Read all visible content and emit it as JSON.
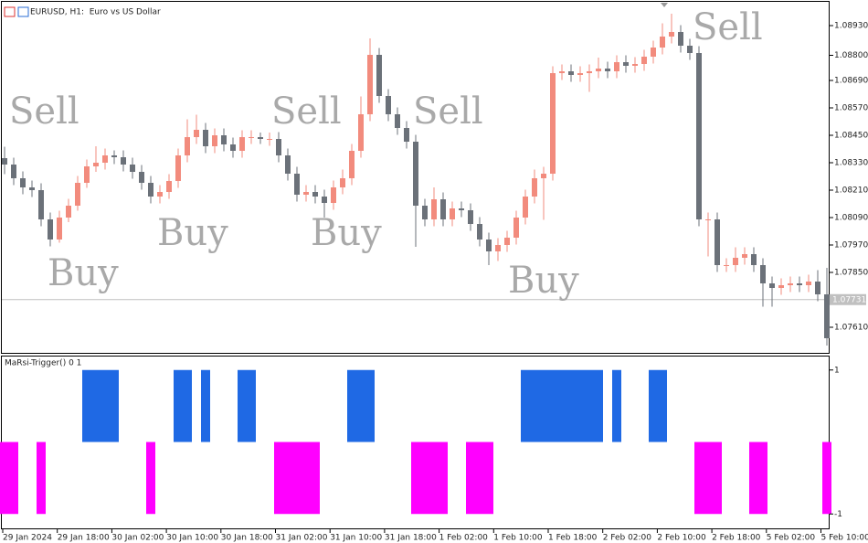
{
  "chart_data": {
    "type": "candlestick",
    "title": "EURUSD, H1:  Euro vs US Dollar",
    "up_color": "#f28b7d",
    "down_color": "#6b7179",
    "open": [
      1.0835,
      1.08322,
      1.08262,
      1.08222,
      1.0821,
      1.08082,
      1.07994,
      1.0809,
      1.08142,
      1.08242,
      1.08314,
      1.0833,
      1.08362,
      1.08354,
      1.08322,
      1.0829,
      1.08242,
      1.08182,
      1.08202,
      1.0825,
      1.08362,
      1.08442,
      1.08474,
      1.08402,
      1.0845,
      1.0841,
      1.08382,
      1.08442,
      1.08442,
      1.08434,
      1.08434,
      1.08362,
      1.08282,
      1.0819,
      1.08202,
      1.08182,
      1.08154,
      1.08222,
      1.08262,
      1.08382,
      1.08542,
      1.08802,
      1.08622,
      1.08542,
      1.08482,
      1.08422,
      1.08142,
      1.08082,
      1.0817,
      1.08082,
      1.0813,
      1.08122,
      1.08062,
      1.07994,
      1.07942,
      1.0797,
      1.08002,
      1.0809,
      1.08182,
      1.08262,
      1.08282,
      1.08722,
      1.0873,
      1.08714,
      1.08722,
      1.0873,
      1.08742,
      1.0873,
      1.0877,
      1.08754,
      1.08762,
      1.08794,
      1.08834,
      1.08882,
      1.08902,
      1.08842,
      1.0881,
      1.08082,
      1.08082,
      1.07882,
      1.07882,
      1.07914,
      1.0793,
      1.07882,
      1.07802,
      1.07782,
      1.07794,
      1.07802,
      1.07794,
      1.0781,
      1.07754
    ],
    "high": [
      1.084,
      1.08352,
      1.08292,
      1.08252,
      1.0824,
      1.08112,
      1.0812,
      1.08172,
      1.08272,
      1.08344,
      1.08402,
      1.08392,
      1.08384,
      1.08384,
      1.08352,
      1.0832,
      1.08272,
      1.08232,
      1.0828,
      1.08392,
      1.0852,
      1.0854,
      1.08504,
      1.0848,
      1.0848,
      1.0844,
      1.08472,
      1.08472,
      1.08462,
      1.08462,
      1.08464,
      1.08392,
      1.08312,
      1.08232,
      1.08232,
      1.08212,
      1.08252,
      1.083,
      1.08412,
      1.0862,
      1.08874,
      1.08832,
      1.08652,
      1.08572,
      1.08512,
      1.08452,
      1.08172,
      1.08222,
      1.082,
      1.0816,
      1.0816,
      1.08152,
      1.08092,
      1.08024,
      1.08,
      1.08032,
      1.0812,
      1.08212,
      1.083,
      1.08312,
      1.08752,
      1.0876,
      1.0876,
      1.08752,
      1.0876,
      1.0879,
      1.08772,
      1.088,
      1.088,
      1.08792,
      1.08824,
      1.08864,
      1.0894,
      1.08982,
      1.08932,
      1.08872,
      1.0884,
      1.08112,
      1.08112,
      1.07912,
      1.0796,
      1.0796,
      1.0796,
      1.07912,
      1.07832,
      1.07824,
      1.07832,
      1.07832,
      1.0784,
      1.0786,
      1.0787
    ],
    "low": [
      1.0828,
      1.08232,
      1.08192,
      1.0818,
      1.08052,
      1.07964,
      1.0798,
      1.0807,
      1.0812,
      1.0822,
      1.0829,
      1.083,
      1.08324,
      1.08292,
      1.0826,
      1.08212,
      1.08152,
      1.08152,
      1.08172,
      1.0822,
      1.08332,
      1.08412,
      1.08372,
      1.08372,
      1.0838,
      1.08352,
      1.08352,
      1.08412,
      1.08412,
      1.08404,
      1.08332,
      1.08252,
      1.0816,
      1.0816,
      1.08152,
      1.0809,
      1.08124,
      1.08192,
      1.08232,
      1.08352,
      1.08512,
      1.08592,
      1.08512,
      1.08452,
      1.08392,
      1.07962,
      1.08052,
      1.08052,
      1.08052,
      1.08052,
      1.08092,
      1.08032,
      1.07964,
      1.07882,
      1.079,
      1.0794,
      1.07972,
      1.0806,
      1.08152,
      1.0808,
      1.08252,
      1.08692,
      1.08684,
      1.08684,
      1.0864,
      1.087,
      1.087,
      1.087,
      1.08724,
      1.08724,
      1.08732,
      1.08764,
      1.08804,
      1.08852,
      1.08812,
      1.0878,
      1.08052,
      1.0792,
      1.07852,
      1.07852,
      1.07852,
      1.07884,
      1.07852,
      1.077,
      1.077,
      1.07752,
      1.07764,
      1.07764,
      1.07764,
      1.07724,
      1.0753
    ],
    "close": [
      1.08322,
      1.08262,
      1.08222,
      1.0821,
      1.08082,
      1.07994,
      1.0809,
      1.08142,
      1.08242,
      1.08314,
      1.0833,
      1.08362,
      1.08354,
      1.08322,
      1.0829,
      1.08242,
      1.08182,
      1.08202,
      1.0825,
      1.08362,
      1.08442,
      1.08474,
      1.08402,
      1.0845,
      1.0841,
      1.08382,
      1.08442,
      1.08442,
      1.08434,
      1.08434,
      1.08362,
      1.08282,
      1.0819,
      1.08202,
      1.08182,
      1.08154,
      1.08222,
      1.08262,
      1.08382,
      1.08542,
      1.08802,
      1.08622,
      1.08542,
      1.08482,
      1.08422,
      1.08142,
      1.08082,
      1.0817,
      1.08082,
      1.0813,
      1.08122,
      1.08062,
      1.07994,
      1.07942,
      1.0797,
      1.08002,
      1.0809,
      1.08182,
      1.08262,
      1.08282,
      1.08722,
      1.0873,
      1.08714,
      1.08722,
      1.0873,
      1.08742,
      1.0873,
      1.0877,
      1.08754,
      1.08762,
      1.08794,
      1.08834,
      1.08882,
      1.08902,
      1.08842,
      1.0881,
      1.08082,
      1.08082,
      1.07882,
      1.07882,
      1.07914,
      1.0793,
      1.07882,
      1.07802,
      1.07782,
      1.07794,
      1.07802,
      1.07794,
      1.0781,
      1.07754,
      1.07562
    ],
    "ylim": [
      1.07495,
      1.0903
    ],
    "yticks": [
      {
        "value": 1.0893,
        "label": "1.08930"
      },
      {
        "value": 1.088,
        "label": "1.08800"
      },
      {
        "value": 1.0869,
        "label": "1.08690"
      },
      {
        "value": 1.0857,
        "label": "1.08570"
      },
      {
        "value": 1.0845,
        "label": "1.08450"
      },
      {
        "value": 1.0833,
        "label": "1.08330"
      },
      {
        "value": 1.0821,
        "label": "1.08210"
      },
      {
        "value": 1.0809,
        "label": "1.08090"
      },
      {
        "value": 1.0797,
        "label": "1.07970"
      },
      {
        "value": 1.0785,
        "label": "1.07850"
      },
      {
        "value": 1.0761,
        "label": "1.07610"
      }
    ],
    "price_line": {
      "value": 1.07731,
      "label": "1.07731"
    },
    "x_labels": [
      "29 Jan 2024",
      "29 Jan 18:00",
      "30 Jan 02:00",
      "30 Jan 10:00",
      "30 Jan 18:00",
      "31 Jan 02:00",
      "31 Jan 10:00",
      "31 Jan 18:00",
      "1 Feb 02:00",
      "1 Feb 10:00",
      "1 Feb 18:00",
      "2 Feb 02:00",
      "2 Feb 10:00",
      "2 Feb 18:00",
      "5 Feb 02:00",
      "5 Feb 10:00"
    ],
    "annotations": [
      "Sell",
      "Sell",
      "Sell",
      "Sell",
      "Buy",
      "Buy",
      "Buy",
      "Buy"
    ],
    "indicator": {
      "title": "MaRsi-Trigger() 0 1",
      "up_color": "#1f69e4",
      "down_color": "#ff00ff",
      "ylim": [
        -1.2,
        1.2
      ],
      "yticks": [
        1,
        -1
      ],
      "values": [
        -1,
        -1,
        0,
        0,
        -1,
        0,
        0,
        0,
        0,
        1,
        1,
        1,
        1,
        0,
        0,
        0,
        -1,
        0,
        0,
        1,
        1,
        0,
        1,
        0,
        0,
        0,
        1,
        1,
        0,
        0,
        -1,
        -1,
        -1,
        -1,
        -1,
        0,
        0,
        0,
        1,
        1,
        1,
        0,
        0,
        0,
        0,
        -1,
        -1,
        -1,
        -1,
        0,
        0,
        -1,
        -1,
        -1,
        0,
        0,
        0,
        1,
        1,
        1,
        1,
        1,
        1,
        1,
        1,
        1,
        0,
        1,
        0,
        0,
        0,
        1,
        1,
        0,
        0,
        0,
        -1,
        -1,
        -1,
        0,
        0,
        0,
        -1,
        -1,
        0,
        0,
        0,
        0,
        0,
        0,
        -1
      ]
    }
  }
}
